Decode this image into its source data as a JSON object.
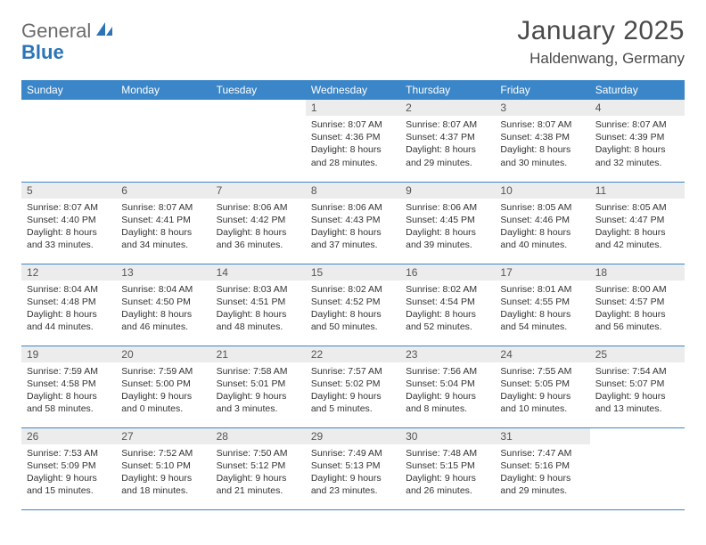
{
  "logo": {
    "general": "General",
    "blue": "Blue"
  },
  "title": "January 2025",
  "location": "Haldenwang, Germany",
  "colors": {
    "accent": "#3b86c8",
    "daynum_bg": "#ececec",
    "text": "#333333"
  },
  "day_headers": [
    "Sunday",
    "Monday",
    "Tuesday",
    "Wednesday",
    "Thursday",
    "Friday",
    "Saturday"
  ],
  "weeks": [
    [
      null,
      null,
      null,
      {
        "n": "1",
        "sr": "8:07 AM",
        "ss": "4:36 PM",
        "dl1": "Daylight: 8 hours",
        "dl2": "and 28 minutes."
      },
      {
        "n": "2",
        "sr": "8:07 AM",
        "ss": "4:37 PM",
        "dl1": "Daylight: 8 hours",
        "dl2": "and 29 minutes."
      },
      {
        "n": "3",
        "sr": "8:07 AM",
        "ss": "4:38 PM",
        "dl1": "Daylight: 8 hours",
        "dl2": "and 30 minutes."
      },
      {
        "n": "4",
        "sr": "8:07 AM",
        "ss": "4:39 PM",
        "dl1": "Daylight: 8 hours",
        "dl2": "and 32 minutes."
      }
    ],
    [
      {
        "n": "5",
        "sr": "8:07 AM",
        "ss": "4:40 PM",
        "dl1": "Daylight: 8 hours",
        "dl2": "and 33 minutes."
      },
      {
        "n": "6",
        "sr": "8:07 AM",
        "ss": "4:41 PM",
        "dl1": "Daylight: 8 hours",
        "dl2": "and 34 minutes."
      },
      {
        "n": "7",
        "sr": "8:06 AM",
        "ss": "4:42 PM",
        "dl1": "Daylight: 8 hours",
        "dl2": "and 36 minutes."
      },
      {
        "n": "8",
        "sr": "8:06 AM",
        "ss": "4:43 PM",
        "dl1": "Daylight: 8 hours",
        "dl2": "and 37 minutes."
      },
      {
        "n": "9",
        "sr": "8:06 AM",
        "ss": "4:45 PM",
        "dl1": "Daylight: 8 hours",
        "dl2": "and 39 minutes."
      },
      {
        "n": "10",
        "sr": "8:05 AM",
        "ss": "4:46 PM",
        "dl1": "Daylight: 8 hours",
        "dl2": "and 40 minutes."
      },
      {
        "n": "11",
        "sr": "8:05 AM",
        "ss": "4:47 PM",
        "dl1": "Daylight: 8 hours",
        "dl2": "and 42 minutes."
      }
    ],
    [
      {
        "n": "12",
        "sr": "8:04 AM",
        "ss": "4:48 PM",
        "dl1": "Daylight: 8 hours",
        "dl2": "and 44 minutes."
      },
      {
        "n": "13",
        "sr": "8:04 AM",
        "ss": "4:50 PM",
        "dl1": "Daylight: 8 hours",
        "dl2": "and 46 minutes."
      },
      {
        "n": "14",
        "sr": "8:03 AM",
        "ss": "4:51 PM",
        "dl1": "Daylight: 8 hours",
        "dl2": "and 48 minutes."
      },
      {
        "n": "15",
        "sr": "8:02 AM",
        "ss": "4:52 PM",
        "dl1": "Daylight: 8 hours",
        "dl2": "and 50 minutes."
      },
      {
        "n": "16",
        "sr": "8:02 AM",
        "ss": "4:54 PM",
        "dl1": "Daylight: 8 hours",
        "dl2": "and 52 minutes."
      },
      {
        "n": "17",
        "sr": "8:01 AM",
        "ss": "4:55 PM",
        "dl1": "Daylight: 8 hours",
        "dl2": "and 54 minutes."
      },
      {
        "n": "18",
        "sr": "8:00 AM",
        "ss": "4:57 PM",
        "dl1": "Daylight: 8 hours",
        "dl2": "and 56 minutes."
      }
    ],
    [
      {
        "n": "19",
        "sr": "7:59 AM",
        "ss": "4:58 PM",
        "dl1": "Daylight: 8 hours",
        "dl2": "and 58 minutes."
      },
      {
        "n": "20",
        "sr": "7:59 AM",
        "ss": "5:00 PM",
        "dl1": "Daylight: 9 hours",
        "dl2": "and 0 minutes."
      },
      {
        "n": "21",
        "sr": "7:58 AM",
        "ss": "5:01 PM",
        "dl1": "Daylight: 9 hours",
        "dl2": "and 3 minutes."
      },
      {
        "n": "22",
        "sr": "7:57 AM",
        "ss": "5:02 PM",
        "dl1": "Daylight: 9 hours",
        "dl2": "and 5 minutes."
      },
      {
        "n": "23",
        "sr": "7:56 AM",
        "ss": "5:04 PM",
        "dl1": "Daylight: 9 hours",
        "dl2": "and 8 minutes."
      },
      {
        "n": "24",
        "sr": "7:55 AM",
        "ss": "5:05 PM",
        "dl1": "Daylight: 9 hours",
        "dl2": "and 10 minutes."
      },
      {
        "n": "25",
        "sr": "7:54 AM",
        "ss": "5:07 PM",
        "dl1": "Daylight: 9 hours",
        "dl2": "and 13 minutes."
      }
    ],
    [
      {
        "n": "26",
        "sr": "7:53 AM",
        "ss": "5:09 PM",
        "dl1": "Daylight: 9 hours",
        "dl2": "and 15 minutes."
      },
      {
        "n": "27",
        "sr": "7:52 AM",
        "ss": "5:10 PM",
        "dl1": "Daylight: 9 hours",
        "dl2": "and 18 minutes."
      },
      {
        "n": "28",
        "sr": "7:50 AM",
        "ss": "5:12 PM",
        "dl1": "Daylight: 9 hours",
        "dl2": "and 21 minutes."
      },
      {
        "n": "29",
        "sr": "7:49 AM",
        "ss": "5:13 PM",
        "dl1": "Daylight: 9 hours",
        "dl2": "and 23 minutes."
      },
      {
        "n": "30",
        "sr": "7:48 AM",
        "ss": "5:15 PM",
        "dl1": "Daylight: 9 hours",
        "dl2": "and 26 minutes."
      },
      {
        "n": "31",
        "sr": "7:47 AM",
        "ss": "5:16 PM",
        "dl1": "Daylight: 9 hours",
        "dl2": "and 29 minutes."
      },
      null
    ]
  ]
}
